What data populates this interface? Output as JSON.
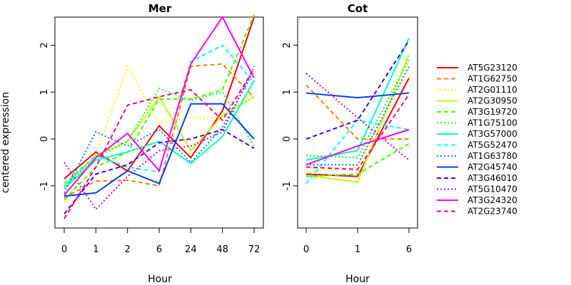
{
  "chart_data": [
    {
      "type": "line",
      "title": "Mer",
      "xlabel": "Hour",
      "ylabel": "centered expression",
      "categories": [
        "0",
        "1",
        "2",
        "6",
        "24",
        "48",
        "72"
      ],
      "ylim": [
        -1.9,
        2.6
      ],
      "yticks": [
        "-1",
        "0",
        "1",
        "2"
      ],
      "series": [
        {
          "name": "AT5G23120",
          "values": [
            -0.85,
            -0.28,
            -0.68,
            0.28,
            -0.4,
            0.6,
            2.6
          ]
        },
        {
          "name": "AT1G62750",
          "values": [
            -1.25,
            -0.9,
            -0.88,
            -1.0,
            1.55,
            1.6,
            0.88
          ]
        },
        {
          "name": "AT2G01110",
          "values": [
            -1.35,
            -0.35,
            1.55,
            0.35,
            0.45,
            0.45,
            1.0
          ]
        },
        {
          "name": "AT2G30950",
          "values": [
            -1.0,
            -0.35,
            -0.05,
            0.9,
            -0.25,
            0.5,
            0.9
          ]
        },
        {
          "name": "AT3G19720",
          "values": [
            -1.3,
            -0.6,
            -0.28,
            0.85,
            0.85,
            1.05,
            2.65
          ]
        },
        {
          "name": "AT1G75100",
          "values": [
            -1.0,
            -0.4,
            -0.05,
            1.08,
            0.82,
            1.0,
            -0.15
          ]
        },
        {
          "name": "AT3G57000",
          "values": [
            -1.05,
            -0.45,
            -0.28,
            -0.05,
            -0.52,
            0.05,
            1.25
          ]
        },
        {
          "name": "AT5G52470",
          "values": [
            -0.95,
            -0.35,
            -0.6,
            -0.7,
            1.65,
            2.0,
            1.2
          ]
        },
        {
          "name": "AT1G63780",
          "values": [
            -1.15,
            0.15,
            -0.15,
            0.2,
            -0.5,
            0.25,
            1.45
          ]
        },
        {
          "name": "AT2G45740",
          "values": [
            -1.22,
            -1.15,
            -0.68,
            -0.95,
            0.75,
            0.75,
            0.0
          ]
        },
        {
          "name": "AT3G46010",
          "values": [
            -1.6,
            -0.75,
            -0.55,
            -0.08,
            0.0,
            0.2,
            -0.2
          ]
        },
        {
          "name": "AT5G10470",
          "values": [
            -0.5,
            -1.5,
            -0.8,
            -0.25,
            -0.15,
            0.15,
            1.55
          ]
        },
        {
          "name": "AT3G24320",
          "values": [
            -1.2,
            -0.4,
            0.12,
            -0.68,
            1.6,
            2.6,
            1.3
          ]
        },
        {
          "name": "AT2G23740",
          "values": [
            -1.7,
            -0.6,
            0.72,
            0.9,
            1.05,
            0.4,
            1.5
          ]
        }
      ]
    },
    {
      "type": "line",
      "title": "Cot",
      "xlabel": "Hour",
      "ylabel": "",
      "categories": [
        "0",
        "1",
        "6"
      ],
      "ylim": [
        -1.9,
        2.6
      ],
      "yticks": [
        "-1",
        "0",
        "1",
        "2"
      ],
      "series": [
        {
          "name": "AT5G23120",
          "values": [
            -0.75,
            -0.8,
            1.3
          ]
        },
        {
          "name": "AT1G62750",
          "values": [
            1.15,
            0.0,
            0.0
          ]
        },
        {
          "name": "AT2G01110",
          "values": [
            -0.7,
            -0.6,
            1.5
          ]
        },
        {
          "name": "AT2G30950",
          "values": [
            -0.78,
            -0.92,
            1.8
          ]
        },
        {
          "name": "AT3G19720",
          "values": [
            -0.8,
            -0.75,
            -0.1
          ]
        },
        {
          "name": "AT1G75100",
          "values": [
            -0.35,
            -0.4,
            1.7
          ]
        },
        {
          "name": "AT3G57000",
          "values": [
            -0.45,
            -0.25,
            2.15
          ]
        },
        {
          "name": "AT5G52470",
          "values": [
            -0.95,
            0.4,
            0.2
          ]
        },
        {
          "name": "AT1G63780",
          "values": [
            -0.55,
            -0.55,
            1.55
          ]
        },
        {
          "name": "AT2G45740",
          "values": [
            0.98,
            0.88,
            0.98
          ]
        },
        {
          "name": "AT3G46010",
          "values": [
            0.0,
            0.4,
            2.1
          ]
        },
        {
          "name": "AT5G10470",
          "values": [
            1.4,
            0.45,
            -0.45
          ]
        },
        {
          "name": "AT3G24320",
          "values": [
            -0.55,
            -0.15,
            0.2
          ]
        },
        {
          "name": "AT2G23740",
          "values": [
            -0.6,
            -0.65,
            0.95
          ]
        }
      ]
    }
  ],
  "legend": {
    "position": "right",
    "entries": [
      {
        "name": "AT5G23120",
        "color": "#FF0000",
        "dash": "solid"
      },
      {
        "name": "AT1G62750",
        "color": "#FF7F00",
        "dash": "dashed"
      },
      {
        "name": "AT2G01110",
        "color": "#FFFF00",
        "dash": "dotted"
      },
      {
        "name": "AT2G30950",
        "color": "#BFFF00",
        "dash": "solid"
      },
      {
        "name": "AT3G19720",
        "color": "#40FF00",
        "dash": "dashed"
      },
      {
        "name": "AT1G75100",
        "color": "#00FF40",
        "dash": "dotted"
      },
      {
        "name": "AT3G57000",
        "color": "#00FFBF",
        "dash": "solid"
      },
      {
        "name": "AT5G52470",
        "color": "#00FFFF",
        "dash": "dashed"
      },
      {
        "name": "AT1G63780",
        "color": "#007FFF",
        "dash": "dotted"
      },
      {
        "name": "AT2G45740",
        "color": "#0040FF",
        "dash": "solid"
      },
      {
        "name": "AT3G46010",
        "color": "#4000FF",
        "dash": "dashed"
      },
      {
        "name": "AT5G10470",
        "color": "#BF00FF",
        "dash": "dotted"
      },
      {
        "name": "AT3G24320",
        "color": "#FF00FF",
        "dash": "solid"
      },
      {
        "name": "AT2G23740",
        "color": "#FF0080",
        "dash": "dashed"
      }
    ]
  }
}
